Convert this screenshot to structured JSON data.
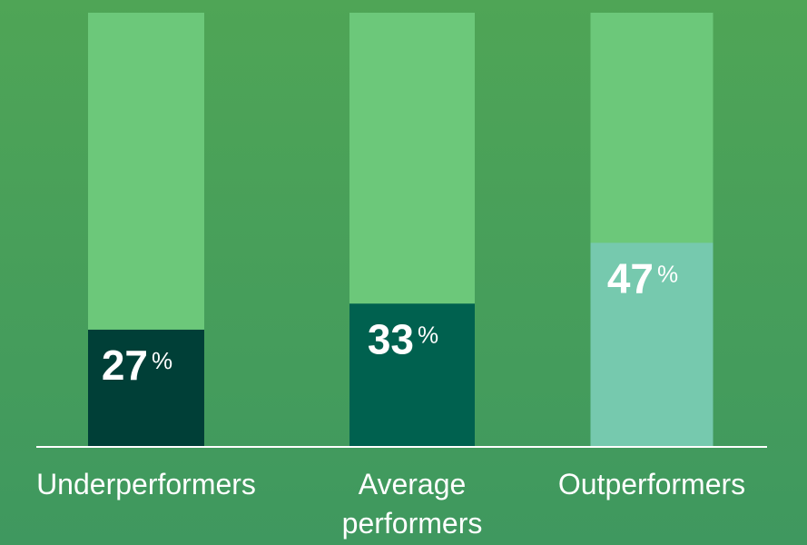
{
  "chart_data": {
    "type": "bar",
    "categories": [
      "Underperformers",
      "Average\nperformers",
      "Outperformers"
    ],
    "values": [
      27,
      33,
      47
    ],
    "unit": "%",
    "colors": [
      "#003f37",
      "#00614f",
      "#76c9ae"
    ],
    "track_color": "#6cc87a",
    "ylim": [
      0,
      100
    ]
  }
}
